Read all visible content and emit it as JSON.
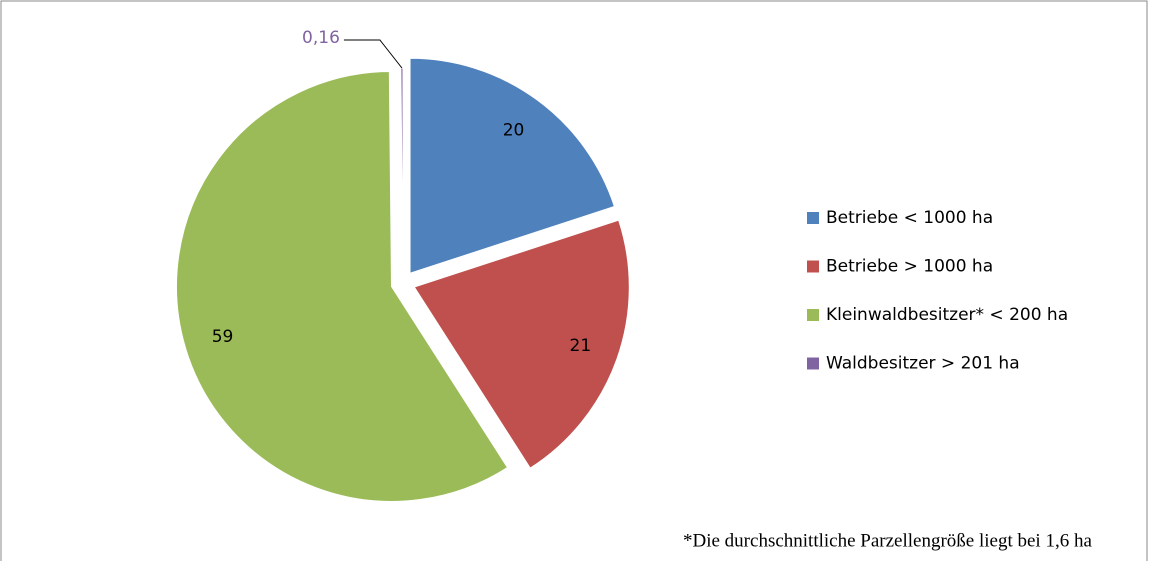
{
  "chart_data": {
    "type": "pie",
    "categories": [
      "Betriebe < 1000 ha",
      "Betriebe > 1000 ha",
      "Kleinwaldbesitzer* < 200 ha",
      "Waldbesitzer > 201 ha"
    ],
    "values": [
      20,
      21,
      59,
      0.16
    ],
    "value_labels": [
      "20",
      "21",
      "59",
      "0,16"
    ],
    "colors": [
      "#4f81bd",
      "#c0504d",
      "#9bbb59",
      "#8064a2"
    ],
    "legend": "right",
    "annotation": "*Die durchschnittliche Parzellengröße liegt bei 1,6 ha"
  }
}
